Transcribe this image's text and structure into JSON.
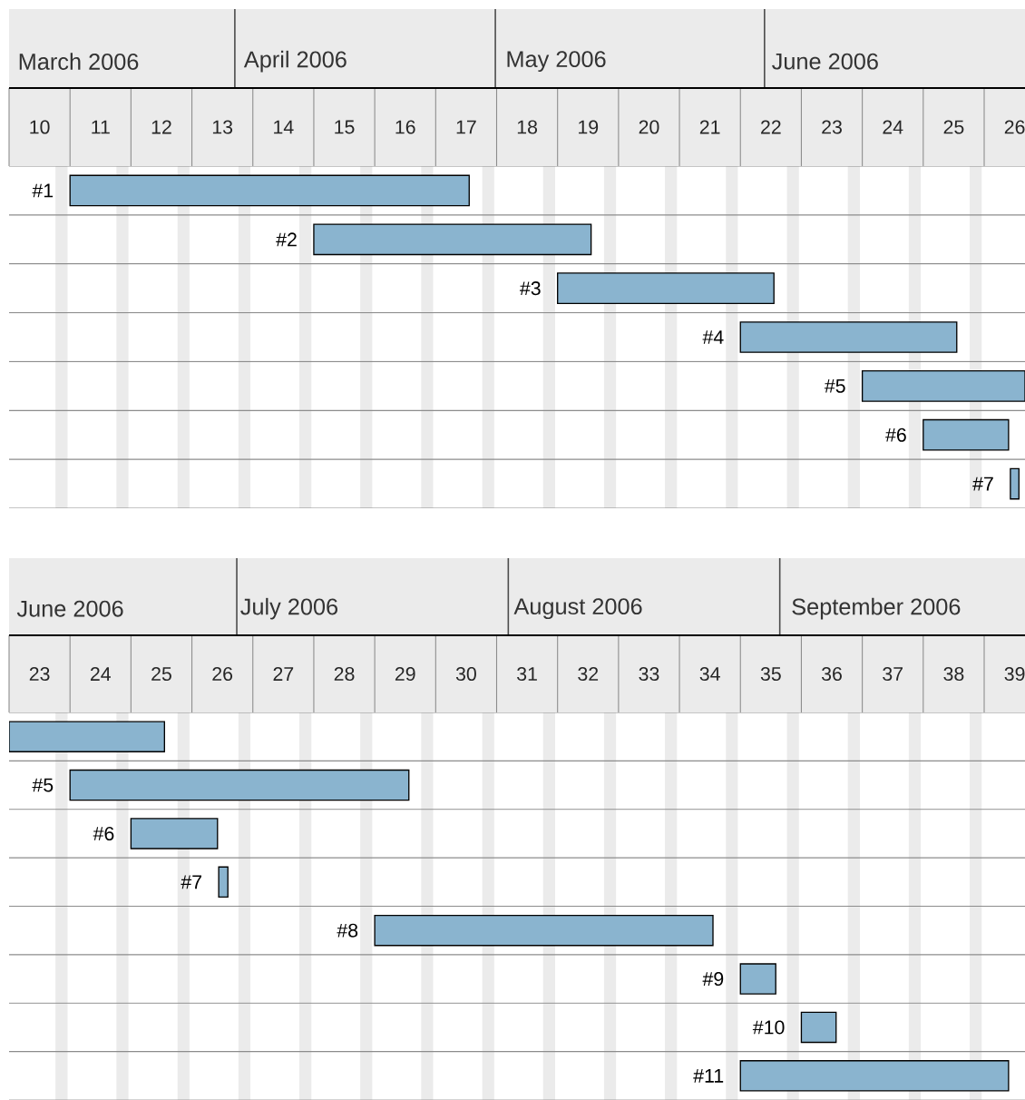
{
  "chart_data": [
    {
      "type": "bar",
      "orientation": "horizontal",
      "categories": [
        "#1",
        "#2",
        "#3",
        "#4",
        "#5",
        "#6",
        "#7"
      ],
      "base": [
        11,
        15,
        19,
        22,
        24,
        25,
        26.43
      ],
      "values": [
        6.55,
        4.55,
        3.55,
        3.55,
        2.67,
        1.4,
        0.14
      ],
      "color": "#8ab4cf",
      "grid": true,
      "xlim": [
        10,
        26.67
      ],
      "xticks": [
        {
          "value": 10.5,
          "label": "10"
        },
        {
          "value": 11.5,
          "label": "11"
        },
        {
          "value": 12.5,
          "label": "12"
        },
        {
          "value": 13.5,
          "label": "13"
        },
        {
          "value": 14.5,
          "label": "14"
        },
        {
          "value": 15.5,
          "label": "15"
        },
        {
          "value": 16.5,
          "label": "16"
        },
        {
          "value": 17.5,
          "label": "17"
        },
        {
          "value": 18.5,
          "label": "18"
        },
        {
          "value": 19.5,
          "label": "19"
        },
        {
          "value": 20.5,
          "label": "20"
        },
        {
          "value": 21.5,
          "label": "21"
        },
        {
          "value": 22.5,
          "label": "22"
        },
        {
          "value": 23.5,
          "label": "23"
        },
        {
          "value": 24.5,
          "label": "24"
        },
        {
          "value": 25.5,
          "label": "25"
        },
        {
          "value": 26.5,
          "label": "26"
        }
      ],
      "x2lim": [
        "2006-03-06",
        "2006-07-01"
      ],
      "x2ticks": [
        {
          "value": "2006-03-14",
          "label": "March 2006"
        },
        {
          "value": "2006-04-08",
          "label": "April 2006"
        },
        {
          "value": "2006-05-08",
          "label": "May 2006"
        },
        {
          "value": "2006-06-08",
          "label": "June 2006"
        }
      ]
    },
    {
      "type": "bar",
      "orientation": "horizontal",
      "categories": [
        null,
        "#5",
        "#6",
        "#7",
        "#8",
        "#9",
        "#10",
        "#11"
      ],
      "base": [
        23,
        24,
        25,
        26.44,
        29,
        35,
        36,
        35
      ],
      "values": [
        2.55,
        5.56,
        1.42,
        0.15,
        5.55,
        0.58,
        0.57,
        4.4
      ],
      "color": "#8ab4cf",
      "grid": true,
      "xlim": [
        23,
        39.67
      ],
      "xticks": [
        {
          "value": 23.5,
          "label": "23"
        },
        {
          "value": 24.5,
          "label": "24"
        },
        {
          "value": 25.5,
          "label": "25"
        },
        {
          "value": 26.5,
          "label": "26"
        },
        {
          "value": 27.5,
          "label": "27"
        },
        {
          "value": 28.5,
          "label": "28"
        },
        {
          "value": 29.5,
          "label": "29"
        },
        {
          "value": 30.5,
          "label": "30"
        },
        {
          "value": 31.5,
          "label": "31"
        },
        {
          "value": 32.5,
          "label": "32"
        },
        {
          "value": 33.5,
          "label": "33"
        },
        {
          "value": 34.5,
          "label": "34"
        },
        {
          "value": 35.5,
          "label": "35"
        },
        {
          "value": 36.5,
          "label": "36"
        },
        {
          "value": 37.5,
          "label": "37"
        },
        {
          "value": 38.5,
          "label": "38"
        },
        {
          "value": 39.5,
          "label": "39"
        }
      ],
      "x2lim": [
        "2006-06-05",
        "2006-09-29"
      ],
      "x2ticks": [
        {
          "value": "2006-06-12",
          "label": "June 2006"
        },
        {
          "value": "2006-07-07",
          "label": "July 2006"
        },
        {
          "value": "2006-08-09",
          "label": "August 2006"
        },
        {
          "value": "2006-09-12",
          "label": "September 2006"
        }
      ]
    }
  ]
}
